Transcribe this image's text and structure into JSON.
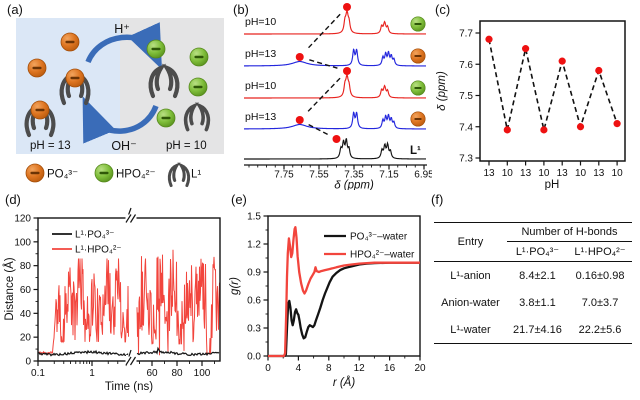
{
  "panels": {
    "a": {
      "label": "(a)",
      "h_plus": "H⁺",
      "oh_minus": "OH⁻",
      "ph_left": "pH = 13",
      "ph_right": "pH = 10",
      "legend": [
        {
          "label": "PO₄³⁻"
        },
        {
          "label": "HPO₄²⁻"
        },
        {
          "label": "L¹"
        }
      ]
    },
    "b": {
      "label": "(b)"
    },
    "c": {
      "label": "(c)"
    },
    "d": {
      "label": "(d)"
    },
    "e": {
      "label": "(e)"
    },
    "f": {
      "label": "(f)"
    }
  },
  "colors": {
    "orange_anion": "#dd7420",
    "green_anion": "#7fbe3a",
    "arrow_blue": "#3a6cb8",
    "tweezer": "#4c4c4c",
    "bg_left": "#dbe7f6",
    "bg_right": "#e4e4e5",
    "red_trace": "#e8231f",
    "blue_trace": "#2326dd",
    "marker_red": "#ee1111"
  },
  "chart_data": [
    {
      "panel": "b",
      "type": "line",
      "subtype": "nmr-stack",
      "xlabel": "δ (ppm)",
      "x_ticks": [
        7.75,
        7.55,
        7.35,
        7.15,
        6.95
      ],
      "x_range": [
        7.98,
        6.93
      ],
      "dot_color": "#ee1111",
      "traces": [
        {
          "label": "pH=10",
          "color": "#e8231f",
          "badge": "green",
          "dot_ppm": 7.39,
          "dot_dy": 27,
          "peaks": [
            [
              7.39,
              20,
              0.009
            ],
            [
              7.402,
              9,
              0.006
            ],
            [
              7.378,
              8,
              0.006
            ],
            [
              7.175,
              11,
              0.008
            ],
            [
              7.192,
              7,
              0.006
            ],
            [
              7.158,
              6,
              0.006
            ]
          ]
        },
        {
          "label": "pH=13",
          "color": "#2326dd",
          "badge": "orange",
          "dot_ppm": 7.66,
          "dot_dy": 9,
          "peaks": [
            [
              7.66,
              4.5,
              0.05
            ],
            [
              7.352,
              15,
              0.0065
            ],
            [
              7.335,
              15,
              0.0065
            ],
            [
              7.185,
              8,
              0.006
            ],
            [
              7.169,
              11,
              0.006
            ],
            [
              7.153,
              12,
              0.006
            ],
            [
              7.137,
              9,
              0.006
            ],
            [
              7.122,
              6,
              0.006
            ]
          ]
        },
        {
          "label": "pH=10",
          "color": "#e8231f",
          "badge": "green",
          "dot_ppm": 7.39,
          "dot_dy": 27,
          "peaks": [
            [
              7.39,
              20,
              0.009
            ],
            [
              7.402,
              9,
              0.006
            ],
            [
              7.378,
              8,
              0.006
            ],
            [
              7.175,
              11,
              0.008
            ],
            [
              7.192,
              7,
              0.006
            ],
            [
              7.158,
              6,
              0.006
            ]
          ]
        },
        {
          "label": "pH=13",
          "color": "#2326dd",
          "badge": "orange",
          "dot_ppm": 7.66,
          "dot_dy": 9,
          "peaks": [
            [
              7.66,
              4.5,
              0.05
            ],
            [
              7.352,
              15,
              0.0065
            ],
            [
              7.335,
              15,
              0.0065
            ],
            [
              7.185,
              8,
              0.006
            ],
            [
              7.169,
              11,
              0.006
            ],
            [
              7.153,
              12,
              0.006
            ],
            [
              7.137,
              9,
              0.006
            ],
            [
              7.122,
              6,
              0.006
            ]
          ]
        },
        {
          "label": "L¹",
          "color": "#141414",
          "badge": null,
          "dot_ppm": 7.45,
          "dot_dy": 20,
          "peaks": [
            [
              7.425,
              9,
              0.0065
            ],
            [
              7.41,
              15,
              0.0065
            ],
            [
              7.394,
              17,
              0.0065
            ],
            [
              7.379,
              9,
              0.006
            ],
            [
              7.19,
              8,
              0.0065
            ],
            [
              7.174,
              12,
              0.0065
            ],
            [
              7.158,
              13,
              0.0065
            ],
            [
              7.142,
              7,
              0.006
            ]
          ]
        }
      ]
    },
    {
      "panel": "c",
      "type": "scatter",
      "xlabel": "pH",
      "ylabel": "δ (ppm)",
      "categories": [
        "13",
        "10",
        "13",
        "10",
        "13",
        "10",
        "13",
        "10"
      ],
      "values": [
        7.68,
        7.39,
        7.65,
        7.39,
        7.61,
        7.4,
        7.58,
        7.41
      ],
      "ylim": [
        7.3,
        7.7
      ],
      "y_ticks": [
        7.7,
        7.6,
        7.5,
        7.4,
        7.3
      ],
      "marker_color": "#ee1111",
      "line_style": "dashed",
      "line_color": "#111111"
    },
    {
      "panel": "d",
      "type": "line",
      "xlabel": "Time (ns)",
      "ylabel": "Distance (Å)",
      "ylim": [
        0,
        120
      ],
      "y_ticks": [
        0,
        20,
        40,
        60,
        80,
        100,
        120
      ],
      "x_axis": {
        "break": true,
        "seg1": {
          "scale": "log",
          "ticks": [
            0.1,
            1
          ]
        },
        "seg2": {
          "scale": "linear",
          "ticks": [
            60,
            80,
            100
          ]
        }
      },
      "series": [
        {
          "name": "L¹·PO₄³⁻",
          "color": "#141414",
          "mean_A": 6.5
        },
        {
          "name": "L¹·HPO₄²⁻",
          "color": "#f2453d",
          "onset_ns": 0.2,
          "band_A": [
            15,
            105
          ]
        }
      ]
    },
    {
      "panel": "e",
      "type": "line",
      "xlabel": "r (Å)",
      "ylabel": "g(r)",
      "xlim": [
        0,
        20
      ],
      "ylim": [
        0,
        1.5
      ],
      "x_ticks": [
        0,
        4,
        8,
        12,
        16,
        20
      ],
      "y_ticks": [
        "0.0",
        "0.3",
        "0.6",
        "0.9",
        "1.2",
        "1.5"
      ],
      "series": [
        {
          "name": "PO₄³⁻–water",
          "color": "#141414",
          "points": [
            [
              0,
              0
            ],
            [
              2.2,
              0
            ],
            [
              2.35,
              0.02
            ],
            [
              2.5,
              0.3
            ],
            [
              2.6,
              0.48
            ],
            [
              2.7,
              0.57
            ],
            [
              2.8,
              0.59
            ],
            [
              2.95,
              0.52
            ],
            [
              3.1,
              0.38
            ],
            [
              3.25,
              0.33
            ],
            [
              3.4,
              0.38
            ],
            [
              3.55,
              0.47
            ],
            [
              3.7,
              0.5
            ],
            [
              3.85,
              0.46
            ],
            [
              4.0,
              0.44
            ],
            [
              4.15,
              0.38
            ],
            [
              4.3,
              0.3
            ],
            [
              4.5,
              0.23
            ],
            [
              4.7,
              0.19
            ],
            [
              4.9,
              0.2
            ],
            [
              5.1,
              0.26
            ],
            [
              5.3,
              0.31
            ],
            [
              5.5,
              0.33
            ],
            [
              5.7,
              0.32
            ],
            [
              5.9,
              0.31
            ],
            [
              6.1,
              0.33
            ],
            [
              6.3,
              0.38
            ],
            [
              6.6,
              0.45
            ],
            [
              6.9,
              0.52
            ],
            [
              7.2,
              0.6
            ],
            [
              7.5,
              0.67
            ],
            [
              7.8,
              0.73
            ],
            [
              8.1,
              0.79
            ],
            [
              8.5,
              0.85
            ],
            [
              9,
              0.89
            ],
            [
              9.5,
              0.92
            ],
            [
              10,
              0.94
            ],
            [
              10.5,
              0.95
            ],
            [
              11,
              0.96
            ],
            [
              12,
              0.98
            ],
            [
              13,
              0.99
            ],
            [
              14,
              0.995
            ],
            [
              16,
              1.0
            ],
            [
              18,
              1.0
            ],
            [
              20,
              1.0
            ]
          ]
        },
        {
          "name": "HPO₄²⁻–water",
          "color": "#f2453d",
          "points": [
            [
              0,
              0
            ],
            [
              2.1,
              0
            ],
            [
              2.25,
              0.03
            ],
            [
              2.4,
              0.45
            ],
            [
              2.5,
              0.85
            ],
            [
              2.6,
              1.1
            ],
            [
              2.75,
              1.26
            ],
            [
              2.9,
              1.18
            ],
            [
              3.05,
              1.06
            ],
            [
              3.2,
              1.1
            ],
            [
              3.35,
              1.25
            ],
            [
              3.5,
              1.36
            ],
            [
              3.6,
              1.38
            ],
            [
              3.75,
              1.27
            ],
            [
              3.9,
              1.07
            ],
            [
              4.1,
              0.9
            ],
            [
              4.35,
              0.78
            ],
            [
              4.6,
              0.7
            ],
            [
              4.8,
              0.67
            ],
            [
              5.0,
              0.7
            ],
            [
              5.3,
              0.77
            ],
            [
              5.6,
              0.83
            ],
            [
              5.9,
              0.87
            ],
            [
              6.1,
              0.9
            ],
            [
              6.25,
              0.95
            ],
            [
              6.4,
              0.91
            ],
            [
              6.7,
              0.9
            ],
            [
              7.0,
              0.91
            ],
            [
              7.5,
              0.92
            ],
            [
              8,
              0.93
            ],
            [
              8.5,
              0.94
            ],
            [
              9,
              0.95
            ],
            [
              9.5,
              0.96
            ],
            [
              10,
              0.97
            ],
            [
              11,
              0.98
            ],
            [
              12,
              0.99
            ],
            [
              13,
              0.995
            ],
            [
              14,
              1.0
            ],
            [
              16,
              1.0
            ],
            [
              18,
              1.0
            ],
            [
              20,
              1.0
            ]
          ]
        }
      ]
    },
    {
      "panel": "f",
      "type": "table",
      "span_header": "Number of H-bonds",
      "columns": [
        "Entry",
        "L¹·PO₄³⁻",
        "L¹·HPO₄²⁻"
      ],
      "rows": [
        [
          "L¹-anion",
          "8.4±2.1",
          "0.16±0.98"
        ],
        [
          "Anion-water",
          "3.8±1.1",
          "7.0±3.7"
        ],
        [
          "L¹-water",
          "21.7±4.16",
          "22.2±5.6"
        ]
      ]
    }
  ]
}
